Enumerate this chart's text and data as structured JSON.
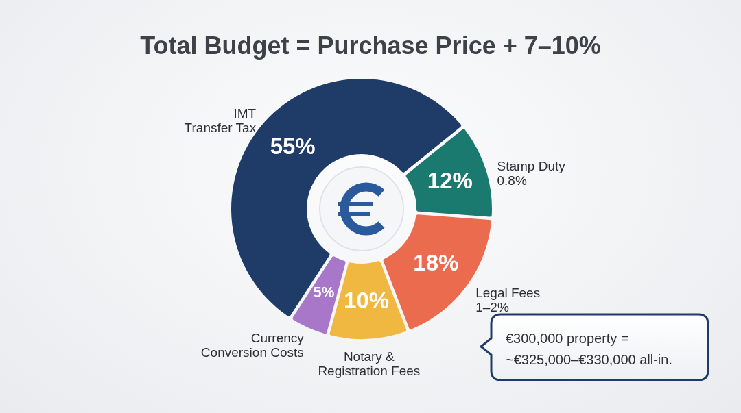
{
  "chart_data": {
    "type": "donut",
    "title": "Total Budget = Purchase Price + 7–10%",
    "categories": [
      "IMT\nTransfer Tax",
      "Stamp Duty\n0.8%",
      "Legal Fees\n1–2%",
      "Notary &\nRegistration Fees",
      "Currency\nConversion Costs"
    ],
    "values": [
      55,
      12,
      18,
      10,
      5
    ],
    "colors": [
      "#1f3b68",
      "#1b7a70",
      "#eb6b4f",
      "#f0b840",
      "#a877c9"
    ],
    "value_labels": [
      "55%",
      "12%",
      "18%",
      "10%",
      "5%"
    ],
    "annotations": [
      "€300,000 property =\n~€325,000–€330,000 all-in."
    ]
  }
}
